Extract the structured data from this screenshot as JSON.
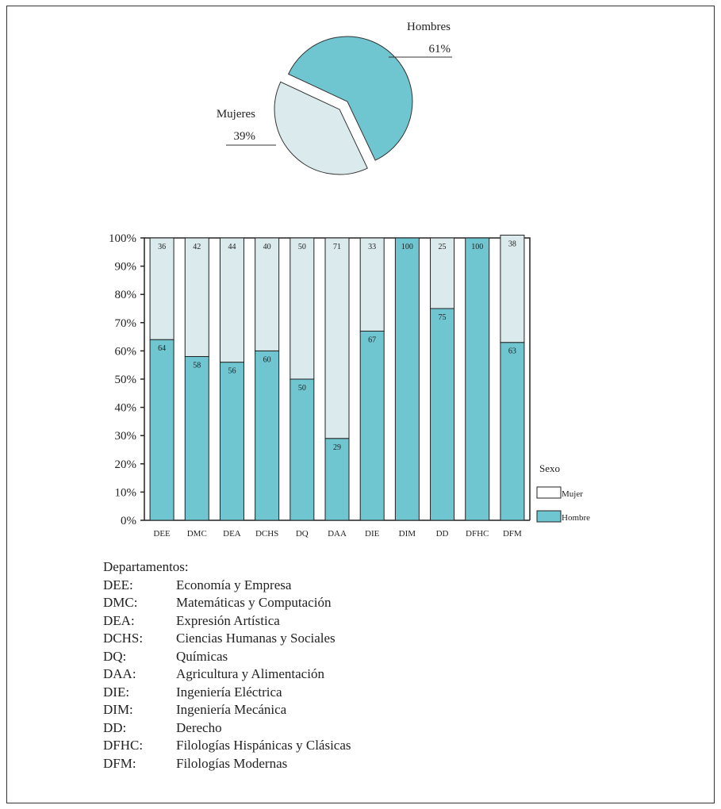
{
  "chart_data": [
    {
      "type": "pie",
      "categories": [
        "Hombres",
        "Mujeres"
      ],
      "values": [
        61,
        39
      ],
      "value_labels": [
        "61%",
        "39%"
      ],
      "colors": [
        "#6fc6d0",
        "#dbeaec"
      ]
    },
    {
      "type": "stacked_bar",
      "categories": [
        "DEE",
        "DMC",
        "DEA",
        "DCHS",
        "DQ",
        "DAA",
        "DIE",
        "DIM",
        "DD",
        "DFHC",
        "DFM"
      ],
      "series": [
        {
          "name": "Hombre",
          "color": "#6fc6d0",
          "values": [
            64,
            58,
            56,
            60,
            50,
            29,
            67,
            100,
            75,
            100,
            63
          ]
        },
        {
          "name": "Mujer",
          "color": "#dbeaec",
          "values": [
            36,
            42,
            44,
            40,
            50,
            71,
            33,
            0,
            25,
            0,
            38
          ]
        }
      ],
      "ylim": [
        0,
        100
      ],
      "yticks": [
        {
          "value": 0,
          "label": "0%"
        },
        {
          "value": 10,
          "label": "10%"
        },
        {
          "value": 20,
          "label": "20%"
        },
        {
          "value": 30,
          "label": "30%"
        },
        {
          "value": 40,
          "label": "40%"
        },
        {
          "value": 50,
          "label": "50%"
        },
        {
          "value": 60,
          "label": "60%"
        },
        {
          "value": 70,
          "label": "70%"
        },
        {
          "value": 80,
          "label": "80%"
        },
        {
          "value": 90,
          "label": "90%"
        },
        {
          "value": 100,
          "label": "100%"
        }
      ],
      "legend_title": "Sexo",
      "legend": "right"
    }
  ],
  "departments": {
    "title": "Departamentos:",
    "rows": [
      [
        "DEE:",
        "Economía y Empresa"
      ],
      [
        "DMC:",
        "Matemáticas y Computación"
      ],
      [
        "DEA:",
        "Expresión Artística"
      ],
      [
        "DCHS:",
        "Ciencias Humanas y Sociales"
      ],
      [
        "DQ:",
        "Químicas"
      ],
      [
        "DAA:",
        "Agricultura y Alimentación"
      ],
      [
        "DIE:",
        "Ingeniería Eléctrica"
      ],
      [
        "DIM:",
        "Ingeniería Mecánica"
      ],
      [
        "DD:",
        "Derecho"
      ],
      [
        "DFHC:",
        "Filologías Hispánicas y Clásicas"
      ],
      [
        "DFM:",
        "Filologías Modernas"
      ]
    ]
  }
}
